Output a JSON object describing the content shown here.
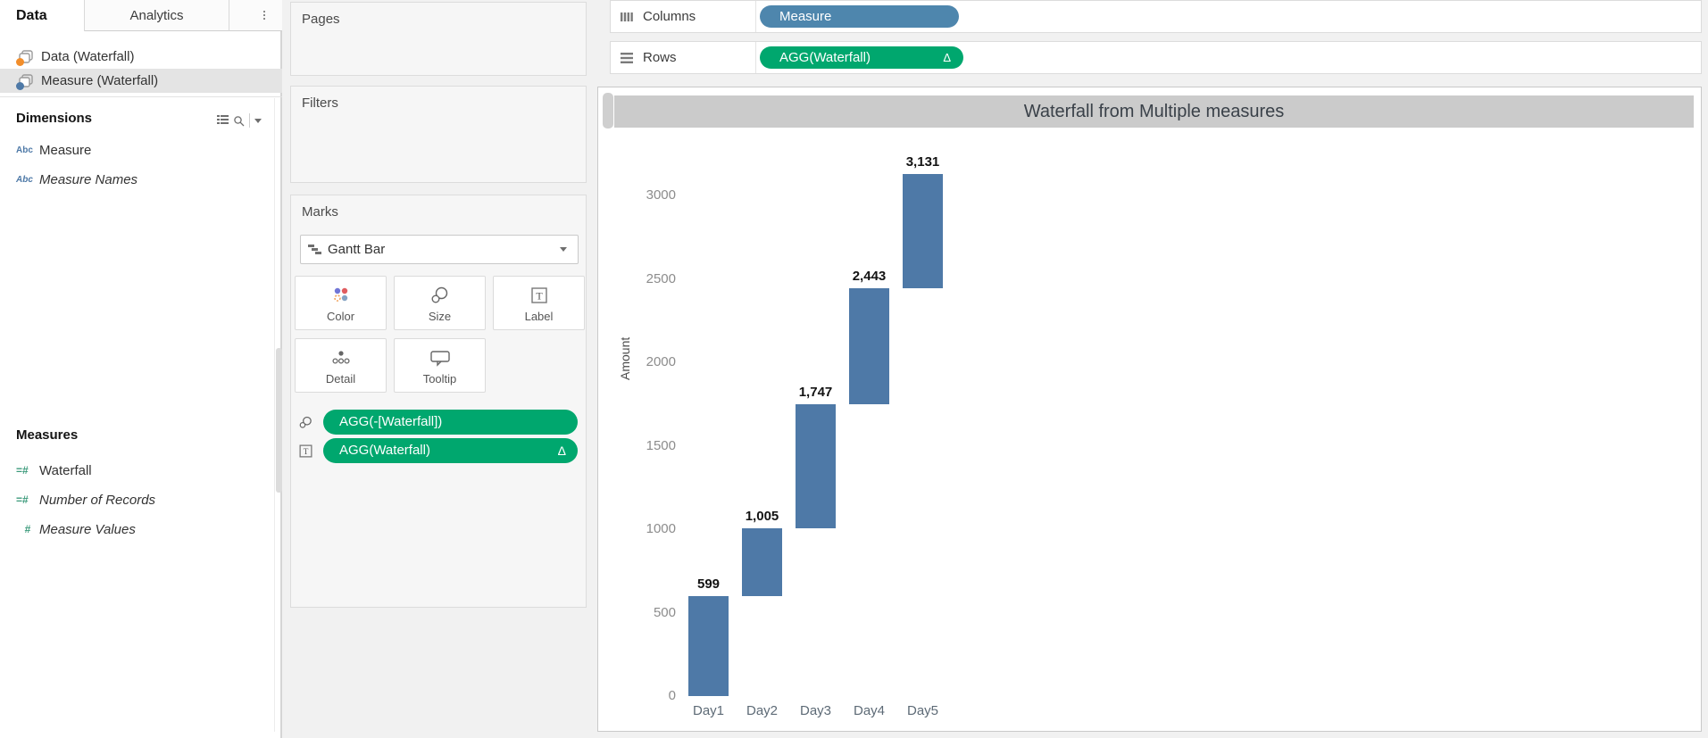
{
  "left_pane": {
    "tabs": [
      {
        "label": "Data"
      },
      {
        "label": "Analytics"
      }
    ],
    "data_sources": [
      {
        "label": "Data (Waterfall)",
        "badge_color": "#f28e2b",
        "selected": false
      },
      {
        "label": "Measure (Waterfall)",
        "badge_color": "#4e79a7",
        "selected": true
      }
    ],
    "dimensions": {
      "header": "Dimensions",
      "fields": [
        {
          "icon": "Abc",
          "label": "Measure"
        },
        {
          "icon": "Abc",
          "label": "Measure Names"
        }
      ]
    },
    "measures": {
      "header": "Measures",
      "fields": [
        {
          "icon": "=#",
          "label": "Waterfall"
        },
        {
          "icon": "=#",
          "label": "Number of Records"
        },
        {
          "icon": "#",
          "label": "Measure Values"
        }
      ]
    }
  },
  "cards": {
    "pages": {
      "title": "Pages"
    },
    "filters": {
      "title": "Filters"
    },
    "marks": {
      "title": "Marks",
      "mark_type": "Gantt Bar",
      "buttons": [
        {
          "label": "Color"
        },
        {
          "label": "Size"
        },
        {
          "label": "Label"
        },
        {
          "label": "Detail"
        },
        {
          "label": "Tooltip"
        }
      ],
      "pills": [
        {
          "label": "AGG(-[Waterfall])",
          "color": "#00a76e",
          "delta": ""
        },
        {
          "label": "AGG(Waterfall)",
          "color": "#00a76e",
          "delta": "Δ"
        }
      ]
    }
  },
  "shelves": {
    "columns": {
      "label": "Columns",
      "pill": {
        "label": "Measure",
        "color": "#4e86ad",
        "delta": ""
      }
    },
    "rows": {
      "label": "Rows",
      "pill": {
        "label": "AGG(Waterfall)",
        "color": "#00a76e",
        "delta": "Δ"
      }
    }
  },
  "sheet": {
    "title": "Waterfall from Multiple measures",
    "title_band_color": "#cbcbcb"
  },
  "chart_data": {
    "type": "bar",
    "mark": "gantt-waterfall",
    "title": "Waterfall from Multiple measures",
    "categories": [
      "Day1",
      "Day2",
      "Day3",
      "Day4",
      "Day5"
    ],
    "cumulative": [
      599,
      1005,
      1747,
      2443,
      3131
    ],
    "segments": [
      [
        0,
        599
      ],
      [
        599,
        1005
      ],
      [
        1005,
        1747
      ],
      [
        1747,
        2443
      ],
      [
        2443,
        3131
      ]
    ],
    "labels": [
      "599",
      "1,005",
      "1,747",
      "2,443",
      "3,131"
    ],
    "xlabel": "",
    "ylabel": "Amount",
    "yticks": [
      0,
      500,
      1000,
      1500,
      2000,
      2500,
      3000
    ],
    "ylim": [
      0,
      3250
    ],
    "grid": false,
    "legend": "none",
    "bar_color": "#4e79a7"
  }
}
